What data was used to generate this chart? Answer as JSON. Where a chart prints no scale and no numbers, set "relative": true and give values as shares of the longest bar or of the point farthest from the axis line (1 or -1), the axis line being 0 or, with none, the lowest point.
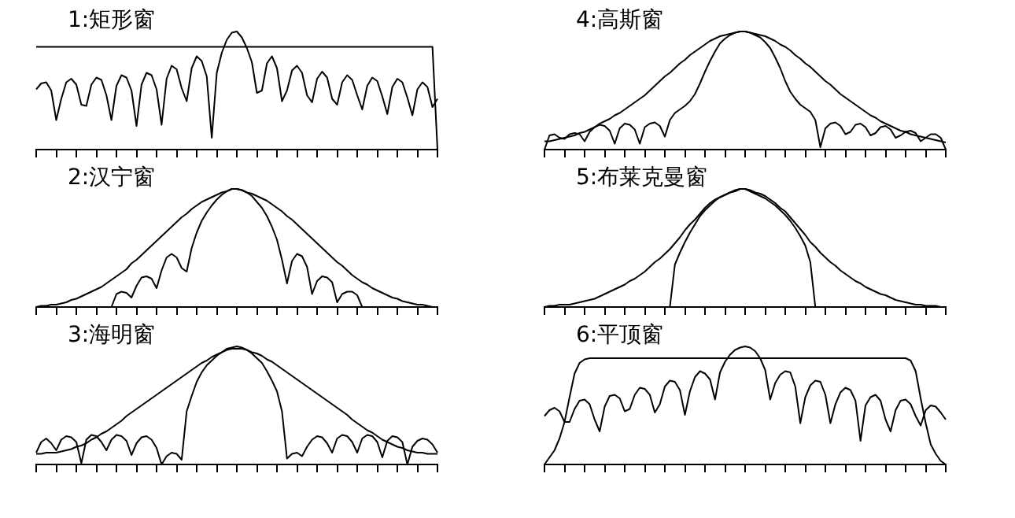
{
  "chart_data": [
    {
      "type": "line",
      "title": "1:矩形窗",
      "relative": true,
      "tick_labels": false,
      "categories": [
        null,
        null,
        null,
        null,
        null,
        null,
        null,
        null,
        null,
        null,
        null,
        null,
        null,
        null,
        null,
        null,
        null,
        null,
        null,
        null,
        null,
        null,
        null,
        null,
        null,
        null,
        null,
        null,
        null,
        null,
        null,
        null,
        null,
        null,
        null,
        null,
        null,
        null,
        null,
        null,
        null,
        null,
        null,
        null,
        null,
        null,
        null,
        null,
        null,
        null,
        null,
        null,
        null,
        null,
        null,
        null,
        null,
        null,
        null,
        null,
        null,
        null,
        null,
        null,
        null,
        null,
        null,
        null,
        null,
        null,
        null,
        null,
        null,
        null,
        null,
        null,
        null,
        null,
        null,
        null,
        null
      ],
      "series": [
        {
          "color": "#000000",
          "values": [
            0.87,
            0.87,
            0.87,
            0.87,
            0.87,
            0.87,
            0.87,
            0.87,
            0.87,
            0.87,
            0.87,
            0.87,
            0.87,
            0.87,
            0.87,
            0.87,
            0.87,
            0.87,
            0.87,
            0.87,
            0.87,
            0.87,
            0.87,
            0.87,
            0.87,
            0.87,
            0.87,
            0.87,
            0.87,
            0.87,
            0.87,
            0.87,
            0.87,
            0.87,
            0.87,
            0.87,
            0.87,
            0.87,
            0.87,
            0.87,
            0.87,
            0.87,
            0.87,
            0.87,
            0.87,
            0.87,
            0.87,
            0.87,
            0.87,
            0.87,
            0.87,
            0.87,
            0.87,
            0.87,
            0.87,
            0.87,
            0.87,
            0.87,
            0.87,
            0.87,
            0.87,
            0.87,
            0.87,
            0.87,
            0.87,
            0.87,
            0.87,
            0.87,
            0.87,
            0.87,
            0.87,
            0.87,
            0.87,
            0.87,
            0.87,
            0.87,
            0.87,
            0.87,
            0.87,
            0.87,
            0
          ]
        },
        {
          "color": "#000000",
          "values": [
            0.51,
            0.56,
            0.57,
            0.5,
            0.25,
            0.43,
            0.57,
            0.6,
            0.55,
            0.38,
            0.37,
            0.55,
            0.61,
            0.59,
            0.46,
            0.25,
            0.54,
            0.63,
            0.61,
            0.5,
            0.2,
            0.55,
            0.65,
            0.63,
            0.51,
            0.21,
            0.6,
            0.71,
            0.68,
            0.52,
            0.41,
            0.69,
            0.79,
            0.75,
            0.62,
            0.1,
            0.65,
            0.82,
            0.93,
            0.99,
            1,
            0.95,
            0.86,
            0.74,
            0.48,
            0.5,
            0.73,
            0.79,
            0.69,
            0.41,
            0.5,
            0.67,
            0.71,
            0.65,
            0.46,
            0.4,
            0.6,
            0.66,
            0.61,
            0.43,
            0.38,
            0.57,
            0.63,
            0.59,
            0.46,
            0.34,
            0.54,
            0.61,
            0.58,
            0.45,
            0.3,
            0.53,
            0.6,
            0.57,
            0.44,
            0.29,
            0.51,
            0.57,
            0.53,
            0.36,
            0.43
          ]
        }
      ]
    },
    {
      "type": "line",
      "title": "4:高斯窗",
      "relative": true,
      "tick_labels": false,
      "categories": [
        null,
        null,
        null,
        null,
        null,
        null,
        null,
        null,
        null,
        null,
        null,
        null,
        null,
        null,
        null,
        null,
        null,
        null,
        null,
        null,
        null,
        null,
        null,
        null,
        null,
        null,
        null,
        null,
        null,
        null,
        null,
        null,
        null,
        null,
        null,
        null,
        null,
        null,
        null,
        null,
        null,
        null,
        null,
        null,
        null,
        null,
        null,
        null,
        null,
        null,
        null,
        null,
        null,
        null,
        null,
        null,
        null,
        null,
        null,
        null,
        null,
        null,
        null,
        null,
        null,
        null,
        null,
        null,
        null,
        null,
        null,
        null,
        null,
        null,
        null,
        null,
        null,
        null,
        null,
        null,
        null
      ],
      "series": [
        {
          "color": "#000000",
          "values": [
            0.07,
            0.07,
            0.08,
            0.09,
            0.1,
            0.11,
            0.12,
            0.14,
            0.15,
            0.17,
            0.19,
            0.22,
            0.24,
            0.26,
            0.29,
            0.31,
            0.34,
            0.37,
            0.4,
            0.43,
            0.46,
            0.5,
            0.54,
            0.58,
            0.62,
            0.65,
            0.69,
            0.73,
            0.76,
            0.8,
            0.83,
            0.86,
            0.89,
            0.92,
            0.94,
            0.96,
            0.97,
            0.98,
            0.99,
            1,
            1,
            0.99,
            0.98,
            0.97,
            0.96,
            0.94,
            0.92,
            0.89,
            0.87,
            0.84,
            0.8,
            0.77,
            0.73,
            0.7,
            0.66,
            0.62,
            0.58,
            0.55,
            0.51,
            0.47,
            0.44,
            0.41,
            0.38,
            0.35,
            0.32,
            0.29,
            0.27,
            0.24,
            0.22,
            0.2,
            0.18,
            0.16,
            0.15,
            0.13,
            0.12,
            0.11,
            0.1,
            0.09,
            0.08,
            0.07,
            0.06
          ]
        },
        {
          "color": "#000000",
          "values": [
            0,
            0.12,
            0.13,
            0.1,
            0.09,
            0.13,
            0.14,
            0.13,
            0.07,
            0.15,
            0.19,
            0.21,
            0.2,
            0.16,
            0.05,
            0.18,
            0.22,
            0.21,
            0.17,
            0.05,
            0.19,
            0.22,
            0.23,
            0.2,
            0.11,
            0.25,
            0.31,
            0.34,
            0.37,
            0.41,
            0.47,
            0.56,
            0.66,
            0.75,
            0.83,
            0.9,
            0.94,
            0.97,
            0.99,
            1,
            1,
            0.99,
            0.97,
            0.95,
            0.91,
            0.86,
            0.78,
            0.69,
            0.58,
            0.49,
            0.43,
            0.38,
            0.35,
            0.32,
            0.25,
            0.02,
            0.18,
            0.22,
            0.23,
            0.2,
            0.13,
            0.15,
            0.21,
            0.22,
            0.19,
            0.12,
            0.14,
            0.19,
            0.2,
            0.17,
            0.1,
            0.12,
            0.15,
            0.16,
            0.14,
            0.07,
            0.1,
            0.13,
            0.13,
            0.1,
            0
          ]
        }
      ]
    },
    {
      "type": "line",
      "title": "2:汉宁窗",
      "relative": true,
      "tick_labels": false,
      "categories": [
        null,
        null,
        null,
        null,
        null,
        null,
        null,
        null,
        null,
        null,
        null,
        null,
        null,
        null,
        null,
        null,
        null,
        null,
        null,
        null,
        null,
        null,
        null,
        null,
        null,
        null,
        null,
        null,
        null,
        null,
        null,
        null,
        null,
        null,
        null,
        null,
        null,
        null,
        null,
        null,
        null,
        null,
        null,
        null,
        null,
        null,
        null,
        null,
        null,
        null,
        null,
        null,
        null,
        null,
        null,
        null,
        null,
        null,
        null,
        null,
        null,
        null,
        null,
        null,
        null,
        null,
        null,
        null,
        null,
        null,
        null,
        null,
        null,
        null,
        null,
        null,
        null,
        null,
        null,
        null,
        null
      ],
      "series": [
        {
          "color": "#000000",
          "values": [
            0,
            0.01,
            0.01,
            0.02,
            0.02,
            0.03,
            0.04,
            0.06,
            0.07,
            0.09,
            0.11,
            0.13,
            0.15,
            0.17,
            0.2,
            0.23,
            0.26,
            0.29,
            0.32,
            0.37,
            0.4,
            0.44,
            0.48,
            0.52,
            0.56,
            0.6,
            0.64,
            0.68,
            0.72,
            0.76,
            0.79,
            0.83,
            0.86,
            0.89,
            0.91,
            0.93,
            0.95,
            0.97,
            0.98,
            1,
            1,
            0.99,
            0.97,
            0.96,
            0.94,
            0.92,
            0.9,
            0.87,
            0.84,
            0.81,
            0.77,
            0.74,
            0.7,
            0.66,
            0.62,
            0.58,
            0.54,
            0.5,
            0.46,
            0.42,
            0.38,
            0.35,
            0.31,
            0.27,
            0.24,
            0.21,
            0.19,
            0.16,
            0.14,
            0.12,
            0.1,
            0.08,
            0.07,
            0.05,
            0.04,
            0.03,
            0.02,
            0.02,
            0.01,
            0,
            0
          ]
        },
        {
          "color": "#000000",
          "values": [
            0,
            0,
            0,
            0,
            0,
            0,
            0,
            0,
            0,
            0,
            0,
            0,
            0,
            0,
            0,
            0,
            0.11,
            0.13,
            0.12,
            0.08,
            0.18,
            0.25,
            0.26,
            0.24,
            0.16,
            0.31,
            0.42,
            0.45,
            0.42,
            0.33,
            0.3,
            0.5,
            0.63,
            0.73,
            0.8,
            0.86,
            0.91,
            0.95,
            0.98,
            1,
            1,
            0.99,
            0.97,
            0.94,
            0.89,
            0.84,
            0.77,
            0.68,
            0.57,
            0.4,
            0.2,
            0.39,
            0.45,
            0.43,
            0.34,
            0.11,
            0.22,
            0.26,
            0.25,
            0.21,
            0.04,
            0.11,
            0.13,
            0.13,
            0.1,
            0,
            0,
            0,
            0,
            0,
            0,
            0,
            0,
            0,
            0,
            0,
            0,
            0,
            0,
            0,
            0
          ]
        }
      ]
    },
    {
      "type": "line",
      "title": "5:布莱克曼窗",
      "relative": true,
      "tick_labels": false,
      "categories": [
        null,
        null,
        null,
        null,
        null,
        null,
        null,
        null,
        null,
        null,
        null,
        null,
        null,
        null,
        null,
        null,
        null,
        null,
        null,
        null,
        null,
        null,
        null,
        null,
        null,
        null,
        null,
        null,
        null,
        null,
        null,
        null,
        null,
        null,
        null,
        null,
        null,
        null,
        null,
        null,
        null,
        null,
        null,
        null,
        null,
        null,
        null,
        null,
        null,
        null,
        null,
        null,
        null,
        null,
        null,
        null,
        null,
        null,
        null,
        null,
        null,
        null,
        null,
        null,
        null,
        null,
        null,
        null,
        null,
        null,
        null,
        null,
        null,
        null,
        null,
        null,
        null,
        null,
        null,
        null,
        null
      ],
      "series": [
        {
          "color": "#000000",
          "values": [
            0,
            0.01,
            0.01,
            0.02,
            0.02,
            0.02,
            0.03,
            0.04,
            0.05,
            0.06,
            0.07,
            0.09,
            0.11,
            0.13,
            0.15,
            0.17,
            0.19,
            0.22,
            0.24,
            0.27,
            0.3,
            0.34,
            0.38,
            0.41,
            0.45,
            0.49,
            0.54,
            0.59,
            0.65,
            0.7,
            0.74,
            0.79,
            0.84,
            0.88,
            0.91,
            0.93,
            0.95,
            0.97,
            0.98,
            1,
            1,
            0.99,
            0.97,
            0.96,
            0.94,
            0.91,
            0.88,
            0.84,
            0.81,
            0.76,
            0.71,
            0.66,
            0.61,
            0.55,
            0.51,
            0.46,
            0.42,
            0.38,
            0.35,
            0.31,
            0.28,
            0.25,
            0.22,
            0.2,
            0.17,
            0.15,
            0.13,
            0.11,
            0.1,
            0.08,
            0.06,
            0.05,
            0.04,
            0.03,
            0.02,
            0.02,
            0.01,
            0.01,
            0.01,
            0,
            0
          ]
        },
        {
          "color": "#000000",
          "values": [
            0,
            0,
            0,
            0,
            0,
            0,
            0,
            0,
            0,
            0,
            0,
            0,
            0,
            0,
            0,
            0,
            0,
            0,
            0,
            0,
            0,
            0,
            0,
            0,
            0,
            0,
            0.36,
            0.46,
            0.55,
            0.63,
            0.7,
            0.77,
            0.82,
            0.86,
            0.9,
            0.93,
            0.95,
            0.97,
            0.99,
            1,
            1,
            0.98,
            0.96,
            0.94,
            0.92,
            0.89,
            0.86,
            0.82,
            0.78,
            0.73,
            0.67,
            0.6,
            0.52,
            0.38,
            0,
            0,
            0,
            0,
            0,
            0,
            0,
            0,
            0,
            0,
            0,
            0,
            0,
            0,
            0,
            0,
            0,
            0,
            0,
            0,
            0,
            0,
            0,
            0,
            0,
            0,
            0
          ]
        }
      ]
    },
    {
      "type": "line",
      "title": "3:海明窗",
      "relative": true,
      "tick_labels": false,
      "categories": [
        null,
        null,
        null,
        null,
        null,
        null,
        null,
        null,
        null,
        null,
        null,
        null,
        null,
        null,
        null,
        null,
        null,
        null,
        null,
        null,
        null,
        null,
        null,
        null,
        null,
        null,
        null,
        null,
        null,
        null,
        null,
        null,
        null,
        null,
        null,
        null,
        null,
        null,
        null,
        null,
        null,
        null,
        null,
        null,
        null,
        null,
        null,
        null,
        null,
        null,
        null,
        null,
        null,
        null,
        null,
        null,
        null,
        null,
        null,
        null,
        null,
        null,
        null,
        null,
        null,
        null,
        null,
        null,
        null,
        null,
        null,
        null,
        null,
        null,
        null,
        null,
        null,
        null,
        null,
        null,
        null
      ],
      "series": [
        {
          "color": "#000000",
          "values": [
            0.09,
            0.09,
            0.1,
            0.1,
            0.1,
            0.11,
            0.12,
            0.13,
            0.15,
            0.16,
            0.18,
            0.21,
            0.23,
            0.26,
            0.28,
            0.31,
            0.34,
            0.37,
            0.41,
            0.44,
            0.47,
            0.5,
            0.53,
            0.56,
            0.59,
            0.62,
            0.65,
            0.68,
            0.71,
            0.74,
            0.77,
            0.8,
            0.83,
            0.86,
            0.88,
            0.91,
            0.93,
            0.95,
            0.97,
            0.98,
            0.98,
            0.98,
            0.97,
            0.95,
            0.94,
            0.92,
            0.89,
            0.87,
            0.84,
            0.81,
            0.78,
            0.75,
            0.72,
            0.69,
            0.66,
            0.63,
            0.6,
            0.57,
            0.54,
            0.51,
            0.48,
            0.45,
            0.42,
            0.38,
            0.35,
            0.32,
            0.29,
            0.27,
            0.24,
            0.21,
            0.19,
            0.17,
            0.15,
            0.14,
            0.12,
            0.11,
            0.1,
            0.1,
            0.09,
            0.09,
            0.09
          ]
        },
        {
          "color": "#000000",
          "values": [
            0.1,
            0.19,
            0.22,
            0.18,
            0.12,
            0.21,
            0.24,
            0.23,
            0.19,
            0.01,
            0.21,
            0.25,
            0.24,
            0.19,
            0.12,
            0.21,
            0.25,
            0.24,
            0.2,
            0.08,
            0.18,
            0.23,
            0.24,
            0.21,
            0.14,
            0,
            0.07,
            0.1,
            0.09,
            0.04,
            0.45,
            0.58,
            0.7,
            0.78,
            0.84,
            0.88,
            0.92,
            0.95,
            0.98,
            0.99,
            1,
            0.99,
            0.97,
            0.94,
            0.9,
            0.86,
            0.79,
            0.71,
            0.62,
            0.45,
            0.05,
            0.09,
            0.1,
            0.07,
            0.15,
            0.21,
            0.24,
            0.23,
            0.18,
            0.1,
            0.22,
            0.25,
            0.24,
            0.19,
            0.1,
            0.22,
            0.25,
            0.24,
            0.19,
            0.06,
            0.2,
            0.24,
            0.23,
            0.19,
            0,
            0.15,
            0.2,
            0.22,
            0.21,
            0.17,
            0.1
          ]
        }
      ]
    },
    {
      "type": "line",
      "title": "6:平顶窗",
      "relative": true,
      "tick_labels": false,
      "categories": [
        null,
        null,
        null,
        null,
        null,
        null,
        null,
        null,
        null,
        null,
        null,
        null,
        null,
        null,
        null,
        null,
        null,
        null,
        null,
        null,
        null,
        null,
        null,
        null,
        null,
        null,
        null,
        null,
        null,
        null,
        null,
        null,
        null,
        null,
        null,
        null,
        null,
        null,
        null,
        null,
        null,
        null,
        null,
        null,
        null,
        null,
        null,
        null,
        null,
        null,
        null,
        null,
        null,
        null,
        null,
        null,
        null,
        null,
        null,
        null,
        null,
        null,
        null,
        null,
        null,
        null,
        null,
        null,
        null,
        null,
        null,
        null,
        null,
        null,
        null,
        null,
        null,
        null,
        null,
        null,
        null
      ],
      "series": [
        {
          "color": "#000000",
          "values": [
            0,
            0.06,
            0.12,
            0.22,
            0.36,
            0.57,
            0.77,
            0.86,
            0.89,
            0.9,
            0.9,
            0.9,
            0.9,
            0.9,
            0.9,
            0.9,
            0.9,
            0.9,
            0.9,
            0.9,
            0.9,
            0.9,
            0.9,
            0.9,
            0.9,
            0.9,
            0.9,
            0.9,
            0.9,
            0.9,
            0.9,
            0.9,
            0.9,
            0.9,
            0.9,
            0.9,
            0.9,
            0.9,
            0.9,
            0.9,
            0.9,
            0.9,
            0.9,
            0.9,
            0.9,
            0.9,
            0.9,
            0.9,
            0.9,
            0.9,
            0.9,
            0.9,
            0.9,
            0.9,
            0.9,
            0.9,
            0.9,
            0.9,
            0.9,
            0.9,
            0.9,
            0.9,
            0.9,
            0.9,
            0.9,
            0.9,
            0.9,
            0.9,
            0.9,
            0.9,
            0.9,
            0.9,
            0.9,
            0.88,
            0.79,
            0.56,
            0.35,
            0.17,
            0.09,
            0.03,
            0
          ]
        },
        {
          "color": "#000000",
          "values": [
            0.41,
            0.46,
            0.48,
            0.45,
            0.36,
            0.36,
            0.47,
            0.54,
            0.55,
            0.51,
            0.38,
            0.28,
            0.49,
            0.58,
            0.59,
            0.56,
            0.45,
            0.47,
            0.59,
            0.65,
            0.64,
            0.59,
            0.44,
            0.51,
            0.66,
            0.71,
            0.7,
            0.63,
            0.42,
            0.62,
            0.74,
            0.79,
            0.77,
            0.72,
            0.55,
            0.78,
            0.87,
            0.93,
            0.97,
            0.99,
            1,
            0.99,
            0.96,
            0.9,
            0.8,
            0.55,
            0.69,
            0.76,
            0.79,
            0.78,
            0.66,
            0.35,
            0.57,
            0.67,
            0.71,
            0.7,
            0.59,
            0.35,
            0.51,
            0.61,
            0.65,
            0.63,
            0.54,
            0.2,
            0.5,
            0.57,
            0.59,
            0.54,
            0.38,
            0.28,
            0.46,
            0.54,
            0.55,
            0.51,
            0.41,
            0.33,
            0.46,
            0.5,
            0.49,
            0.44,
            0.38
          ]
        }
      ]
    }
  ]
}
